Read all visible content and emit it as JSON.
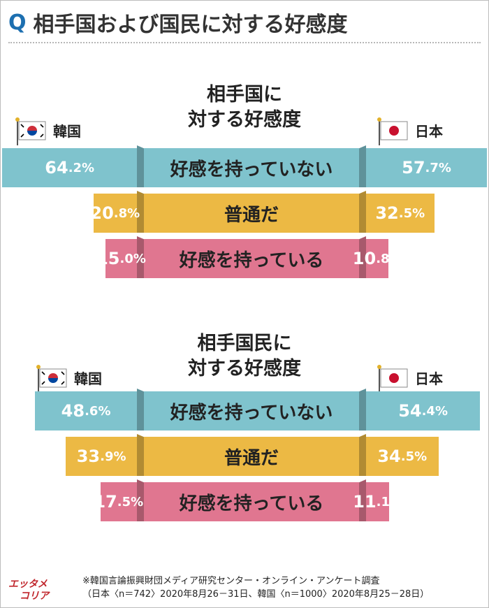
{
  "title": {
    "q": "Q",
    "text": "相手国および国民に対する好感度"
  },
  "labels": {
    "korea": "韓国",
    "japan": "日本"
  },
  "colors": {
    "blue": "#7fc3cd",
    "yellow": "#ecb944",
    "pink": "#e07690",
    "brand": "#1d6fb0"
  },
  "chart_data": [
    {
      "type": "bar",
      "title": "相手国に\n対する好感度",
      "categories": [
        "好感を持っていない",
        "普通だ",
        "好感を持っている"
      ],
      "series": [
        {
          "name": "韓国",
          "values": [
            64.2,
            20.8,
            15.0
          ],
          "labels_int": [
            "64",
            "20",
            "15"
          ],
          "labels_dec": [
            ".2%",
            ".8%",
            ".0%"
          ]
        },
        {
          "name": "日本",
          "values": [
            57.7,
            32.5,
            10.8
          ],
          "labels_int": [
            "57",
            "32",
            "10"
          ],
          "labels_dec": [
            ".7%",
            ".5%",
            ".8%"
          ]
        }
      ]
    },
    {
      "type": "bar",
      "title": "相手国民に\n対する好感度",
      "categories": [
        "好感を持っていない",
        "普通だ",
        "好感を持っている"
      ],
      "series": [
        {
          "name": "韓国",
          "values": [
            48.6,
            33.9,
            17.5
          ],
          "labels_int": [
            "48",
            "33",
            "17"
          ],
          "labels_dec": [
            ".6%",
            ".9%",
            ".5%"
          ]
        },
        {
          "name": "日本",
          "values": [
            54.4,
            34.5,
            11.1
          ],
          "labels_int": [
            "54",
            "34",
            "11"
          ],
          "labels_dec": [
            ".4%",
            ".5%",
            ".1%"
          ]
        }
      ]
    }
  ],
  "footer": {
    "line1": "※韓国言論振興財団メディア研究センター・オンライン・アンケート調査",
    "line2": "（日本〈n＝742〉2020年8月26－31日、韓国〈n＝1000〉2020年8月25－28日）"
  },
  "logo": {
    "line1": "エッタメ",
    "line2": "コリア"
  }
}
